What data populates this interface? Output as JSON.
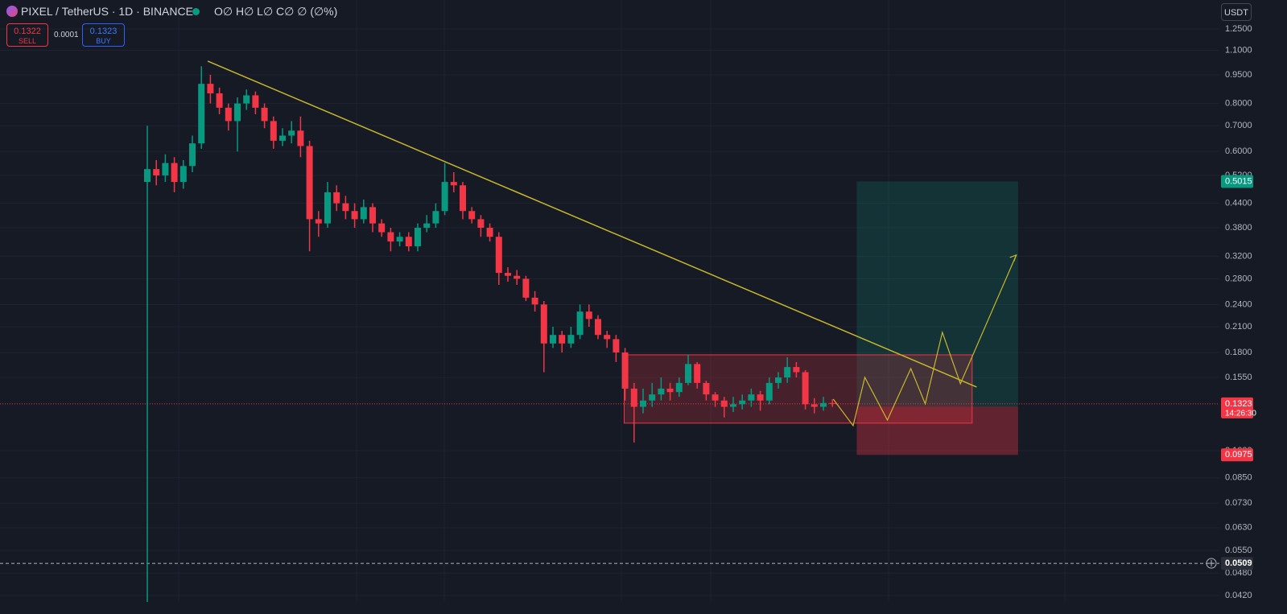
{
  "header": {
    "symbol": "PIXEL / TetherUS · 1D · BINANCE",
    "ohlc": "O∅ H∅ L∅ C∅ ∅ (∅%)",
    "sell_price": "0.1322",
    "sell_label": "SELL",
    "spread": "0.0001",
    "buy_price": "0.1323",
    "buy_label": "BUY",
    "currency": "USDT"
  },
  "chart_data": {
    "type": "candlestick",
    "log_scale": true,
    "up_color": "#089981",
    "down_color": "#f23645",
    "xlim": [
      -16.34,
      118.93
    ],
    "ylim": [
      0.0404,
      1.487
    ],
    "yticks": [
      {
        "value": 1.25,
        "label": "1.2500"
      },
      {
        "value": 1.1,
        "label": "1.1000"
      },
      {
        "value": 0.95,
        "label": "0.9500"
      },
      {
        "value": 0.8,
        "label": "0.8000"
      },
      {
        "value": 0.7,
        "label": "0.7000"
      },
      {
        "value": 0.6,
        "label": "0.6000"
      },
      {
        "value": 0.52,
        "label": "0.5200"
      },
      {
        "value": 0.44,
        "label": "0.4400"
      },
      {
        "value": 0.38,
        "label": "0.3800"
      },
      {
        "value": 0.32,
        "label": "0.3200"
      },
      {
        "value": 0.28,
        "label": "0.2800"
      },
      {
        "value": 0.24,
        "label": "0.2400"
      },
      {
        "value": 0.21,
        "label": "0.2100"
      },
      {
        "value": 0.18,
        "label": "0.1800"
      },
      {
        "value": 0.155,
        "label": "0.1550"
      },
      {
        "value": 0.1,
        "label": "0.1000"
      },
      {
        "value": 0.085,
        "label": "0.0850"
      },
      {
        "value": 0.073,
        "label": "0.0730"
      },
      {
        "value": 0.063,
        "label": "0.0630"
      },
      {
        "value": 0.055,
        "label": "0.0550"
      },
      {
        "value": 0.048,
        "label": "0.0480"
      },
      {
        "value": 0.042,
        "label": "0.0420"
      }
    ],
    "open": [
      0.5,
      0.54,
      0.52,
      0.56,
      0.5,
      0.55,
      0.63,
      0.9,
      0.85,
      0.78,
      0.72,
      0.8,
      0.84,
      0.78,
      0.72,
      0.64,
      0.66,
      0.68,
      0.62,
      0.4,
      0.39,
      0.47,
      0.44,
      0.42,
      0.4,
      0.43,
      0.39,
      0.37,
      0.35,
      0.36,
      0.34,
      0.38,
      0.39,
      0.42,
      0.5,
      0.49,
      0.42,
      0.4,
      0.38,
      0.36,
      0.29,
      0.285,
      0.28,
      0.25,
      0.24,
      0.19,
      0.2,
      0.19,
      0.2,
      0.23,
      0.22,
      0.2,
      0.195,
      0.18,
      0.145,
      0.13,
      0.135,
      0.14,
      0.145,
      0.142,
      0.15,
      0.168,
      0.15,
      0.14,
      0.135,
      0.13,
      0.132,
      0.135,
      0.14,
      0.135,
      0.15,
      0.155,
      0.165,
      0.16,
      0.132,
      0.13,
      0.133
    ],
    "high": [
      0.7,
      0.57,
      0.59,
      0.58,
      0.57,
      0.66,
      1.0,
      0.95,
      0.88,
      0.8,
      0.83,
      0.87,
      0.86,
      0.8,
      0.74,
      0.69,
      0.72,
      0.74,
      0.64,
      0.42,
      0.5,
      0.49,
      0.46,
      0.44,
      0.45,
      0.44,
      0.4,
      0.38,
      0.37,
      0.37,
      0.39,
      0.41,
      0.44,
      0.56,
      0.53,
      0.5,
      0.43,
      0.41,
      0.39,
      0.37,
      0.3,
      0.295,
      0.285,
      0.26,
      0.245,
      0.21,
      0.205,
      0.21,
      0.24,
      0.24,
      0.225,
      0.205,
      0.2,
      0.185,
      0.15,
      0.145,
      0.15,
      0.155,
      0.15,
      0.155,
      0.178,
      0.17,
      0.152,
      0.142,
      0.138,
      0.138,
      0.14,
      0.145,
      0.143,
      0.155,
      0.16,
      0.175,
      0.17,
      0.162,
      0.137,
      0.138,
      0.136
    ],
    "low": [
      0.04,
      0.49,
      0.5,
      0.47,
      0.48,
      0.53,
      0.61,
      0.8,
      0.75,
      0.68,
      0.6,
      0.77,
      0.75,
      0.69,
      0.61,
      0.62,
      0.63,
      0.58,
      0.33,
      0.36,
      0.38,
      0.42,
      0.4,
      0.38,
      0.39,
      0.37,
      0.36,
      0.33,
      0.34,
      0.33,
      0.33,
      0.37,
      0.38,
      0.41,
      0.47,
      0.4,
      0.39,
      0.36,
      0.35,
      0.27,
      0.275,
      0.27,
      0.245,
      0.23,
      0.16,
      0.185,
      0.18,
      0.185,
      0.195,
      0.21,
      0.195,
      0.185,
      0.17,
      0.135,
      0.105,
      0.125,
      0.13,
      0.135,
      0.135,
      0.138,
      0.148,
      0.145,
      0.135,
      0.13,
      0.122,
      0.126,
      0.128,
      0.13,
      0.127,
      0.132,
      0.145,
      0.15,
      0.155,
      0.128,
      0.125,
      0.127,
      0.13
    ],
    "close": [
      0.54,
      0.52,
      0.56,
      0.5,
      0.55,
      0.63,
      0.9,
      0.85,
      0.78,
      0.72,
      0.8,
      0.84,
      0.78,
      0.72,
      0.64,
      0.66,
      0.68,
      0.62,
      0.4,
      0.39,
      0.47,
      0.44,
      0.42,
      0.4,
      0.43,
      0.39,
      0.37,
      0.35,
      0.36,
      0.34,
      0.38,
      0.39,
      0.42,
      0.5,
      0.49,
      0.42,
      0.4,
      0.38,
      0.36,
      0.29,
      0.285,
      0.28,
      0.25,
      0.24,
      0.19,
      0.2,
      0.19,
      0.2,
      0.23,
      0.22,
      0.2,
      0.195,
      0.18,
      0.145,
      0.13,
      0.135,
      0.14,
      0.145,
      0.142,
      0.15,
      0.168,
      0.15,
      0.14,
      0.135,
      0.13,
      0.132,
      0.135,
      0.14,
      0.135,
      0.15,
      0.155,
      0.165,
      0.16,
      0.132,
      0.13,
      0.133,
      0.1323
    ],
    "last_price": 0.1323,
    "countdown": "14:26:30",
    "alert_level": 0.0509,
    "trendline": {
      "x": [
        6.7,
        92.0
      ],
      "y": [
        1.031,
        0.1464
      ],
      "color": "#c8b62c"
    },
    "range_box": {
      "x": [
        52.9,
        91.5
      ],
      "y": [
        0.1775,
        0.1179
      ]
    },
    "position": {
      "x": [
        78.7,
        96.6
      ],
      "target": 0.5015,
      "entry": 0.1302,
      "stop": 0.0975
    },
    "projection": {
      "x": [
        76.1,
        78.3,
        79.6,
        82.1,
        84.7,
        86.3,
        88.2,
        90.2,
        96.4
      ],
      "y": [
        0.1361,
        0.1161,
        0.1551,
        0.1201,
        0.1635,
        0.1323,
        0.2031,
        0.1493,
        0.3228
      ]
    }
  }
}
